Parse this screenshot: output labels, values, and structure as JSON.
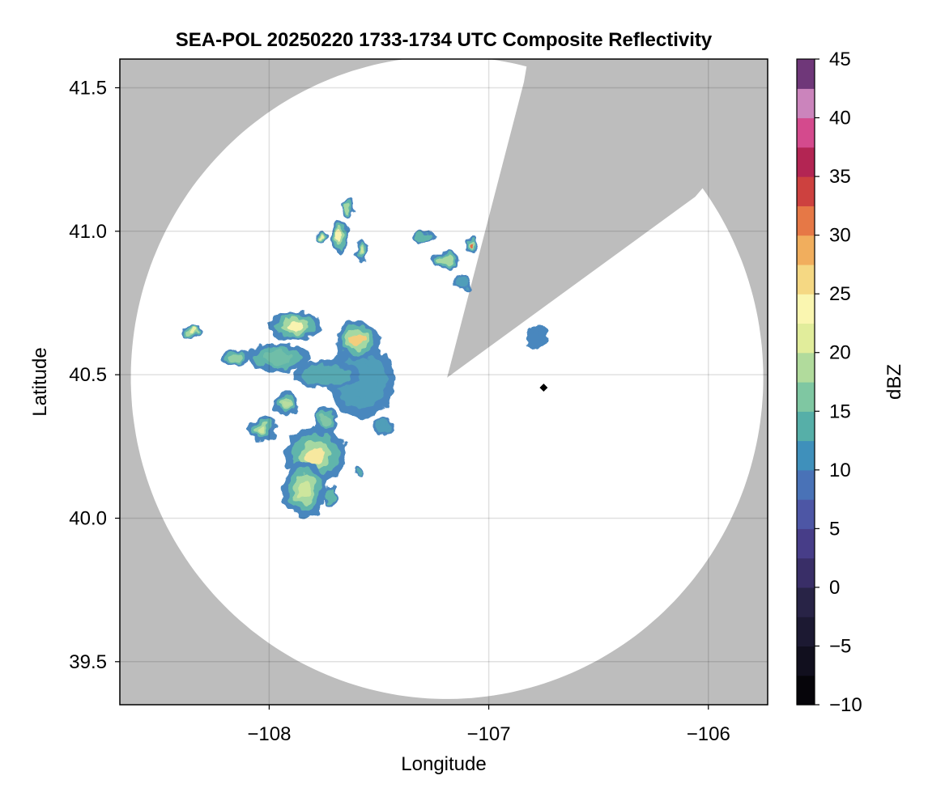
{
  "chart_data": {
    "type": "heatmap",
    "title": "SEA-POL 20250220 1733-1734 UTC Composite Reflectivity",
    "xlabel": "Longitude",
    "ylabel": "Latitude",
    "xlim": [
      -108.68,
      -105.73
    ],
    "ylim": [
      39.35,
      41.6
    ],
    "xticks": [
      -108,
      -107,
      -106
    ],
    "xtick_labels": [
      "−108",
      "−107",
      "−106"
    ],
    "yticks": [
      39.5,
      40.0,
      40.5,
      41.0,
      41.5
    ],
    "ytick_labels": [
      "39.5",
      "40.0",
      "40.5",
      "41.0",
      "41.5"
    ],
    "grid": true,
    "background_color": "#bdbdbd",
    "radar_coverage": {
      "center": {
        "lon": -107.19,
        "lat": 40.49
      },
      "range_edge_lon_west": -108.63,
      "range_edge_lat_south": 39.37,
      "blocked_sector": [
        {
          "lon": -106.84,
          "lat": 41.52
        },
        {
          "lon": -106.06,
          "lat": 41.12
        }
      ]
    },
    "radar_site": {
      "lon": -106.75,
      "lat": 40.455
    },
    "colorbar": {
      "label": "dBZ",
      "min": -10,
      "max": 45,
      "step": 2.5,
      "ticks": [
        -10,
        -5,
        0,
        5,
        10,
        15,
        20,
        25,
        30,
        35,
        40,
        45
      ],
      "tick_labels": [
        "−10",
        "−5",
        "0",
        "5",
        "10",
        "15",
        "20",
        "25",
        "30",
        "35",
        "40",
        "45"
      ],
      "colormap": "Spectral_r"
    },
    "echo_cells": [
      {
        "lon": -107.79,
        "lat": 40.22,
        "rx": 0.14,
        "ry": 0.1,
        "dbz": 25
      },
      {
        "lon": -107.84,
        "lat": 40.1,
        "rx": 0.1,
        "ry": 0.1,
        "dbz": 20
      },
      {
        "lon": -107.74,
        "lat": 40.34,
        "rx": 0.05,
        "ry": 0.05,
        "dbz": 16
      },
      {
        "lon": -107.58,
        "lat": 40.48,
        "rx": 0.15,
        "ry": 0.13,
        "dbz": 12
      },
      {
        "lon": -107.6,
        "lat": 40.62,
        "rx": 0.1,
        "ry": 0.07,
        "dbz": 27
      },
      {
        "lon": -107.88,
        "lat": 40.67,
        "rx": 0.12,
        "ry": 0.05,
        "dbz": 24
      },
      {
        "lon": -107.74,
        "lat": 40.5,
        "rx": 0.15,
        "ry": 0.05,
        "dbz": 13
      },
      {
        "lon": -107.96,
        "lat": 40.56,
        "rx": 0.14,
        "ry": 0.05,
        "dbz": 15
      },
      {
        "lon": -108.35,
        "lat": 40.65,
        "rx": 0.05,
        "ry": 0.02,
        "dbz": 22
      },
      {
        "lon": -108.15,
        "lat": 40.56,
        "rx": 0.06,
        "ry": 0.03,
        "dbz": 17
      },
      {
        "lon": -107.92,
        "lat": 40.4,
        "rx": 0.06,
        "ry": 0.04,
        "dbz": 19
      },
      {
        "lon": -108.03,
        "lat": 40.31,
        "rx": 0.06,
        "ry": 0.04,
        "dbz": 20
      },
      {
        "lon": -107.68,
        "lat": 40.98,
        "rx": 0.04,
        "ry": 0.06,
        "dbz": 24
      },
      {
        "lon": -107.58,
        "lat": 40.93,
        "rx": 0.03,
        "ry": 0.04,
        "dbz": 20
      },
      {
        "lon": -107.76,
        "lat": 40.98,
        "rx": 0.03,
        "ry": 0.02,
        "dbz": 22
      },
      {
        "lon": -107.64,
        "lat": 41.08,
        "rx": 0.03,
        "ry": 0.03,
        "dbz": 18
      },
      {
        "lon": -107.08,
        "lat": 40.95,
        "rx": 0.03,
        "ry": 0.03,
        "dbz": 32
      },
      {
        "lon": -107.2,
        "lat": 40.9,
        "rx": 0.07,
        "ry": 0.03,
        "dbz": 18
      },
      {
        "lon": -107.3,
        "lat": 40.98,
        "rx": 0.05,
        "ry": 0.02,
        "dbz": 14
      },
      {
        "lon": -107.12,
        "lat": 40.82,
        "rx": 0.04,
        "ry": 0.03,
        "dbz": 12
      },
      {
        "lon": -107.72,
        "lat": 40.08,
        "rx": 0.03,
        "ry": 0.04,
        "dbz": 14
      },
      {
        "lon": -107.59,
        "lat": 40.16,
        "rx": 0.02,
        "ry": 0.02,
        "dbz": 13
      },
      {
        "lon": -106.78,
        "lat": 40.63,
        "rx": 0.05,
        "ry": 0.04,
        "dbz": 10
      },
      {
        "lon": -107.48,
        "lat": 40.32,
        "rx": 0.05,
        "ry": 0.03,
        "dbz": 12
      }
    ]
  }
}
